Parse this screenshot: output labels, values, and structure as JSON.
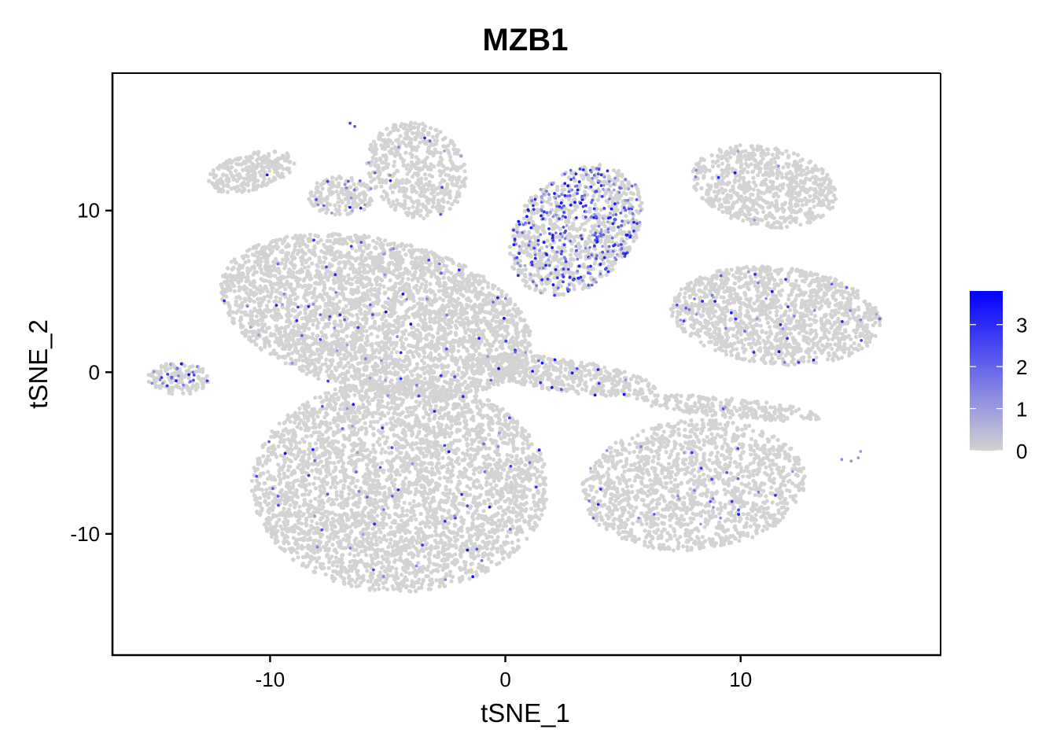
{
  "chart_data": {
    "type": "scatter",
    "title": "MZB1",
    "xlabel": "tSNE_1",
    "ylabel": "tSNE_2",
    "xlim": [
      -16.7,
      18.5
    ],
    "ylim": [
      -17.5,
      18.5
    ],
    "x_ticks": [
      -10,
      0,
      10
    ],
    "x_tick_labels": [
      "-10",
      "0",
      "10"
    ],
    "y_ticks": [
      10,
      0,
      -10
    ],
    "y_tick_labels": [
      "10",
      "0",
      "-10"
    ],
    "grid": false,
    "legend_position": "right",
    "colors": {
      "low": "#d3d3d3",
      "high": "#0000ff"
    },
    "color_scale": {
      "min": 0,
      "max": 3.8,
      "ticks": [
        0,
        1,
        2,
        3
      ],
      "tick_labels": [
        "0",
        "1",
        "2",
        "3"
      ]
    },
    "clusters": [
      {
        "center": [
          -5.5,
          3.5
        ],
        "radius": [
          7.0,
          4.6
        ],
        "angle": -25,
        "n": 3400,
        "expression": 0.02
      },
      {
        "center": [
          -4.5,
          -7.0
        ],
        "radius": [
          6.3,
          6.6
        ],
        "angle": 0,
        "n": 3800,
        "expression": 0.02
      },
      {
        "center": [
          8.0,
          -7.0
        ],
        "radius": [
          4.8,
          4.0
        ],
        "angle": 15,
        "n": 1500,
        "expression": 0.02
      },
      {
        "center": [
          11.5,
          3.5
        ],
        "radius": [
          4.5,
          3.0
        ],
        "angle": -10,
        "n": 1400,
        "expression": 0.03
      },
      {
        "center": [
          3.0,
          8.8
        ],
        "radius": [
          2.6,
          4.2
        ],
        "angle": -20,
        "n": 1100,
        "expression": 0.28
      },
      {
        "center": [
          11.0,
          11.5
        ],
        "radius": [
          3.2,
          2.4
        ],
        "angle": -25,
        "n": 750,
        "expression": 0.01
      },
      {
        "center": [
          -3.8,
          12.5
        ],
        "radius": [
          2.1,
          3.0
        ],
        "angle": 10,
        "n": 550,
        "expression": 0.02
      },
      {
        "center": [
          -10.8,
          12.4
        ],
        "radius": [
          2.0,
          1.1
        ],
        "angle": 25,
        "n": 260,
        "expression": 0.02
      },
      {
        "center": [
          -7.0,
          10.9
        ],
        "radius": [
          1.4,
          1.2
        ],
        "angle": 0,
        "n": 180,
        "expression": 0.12
      },
      {
        "center": [
          -13.9,
          -0.4
        ],
        "radius": [
          1.3,
          1.0
        ],
        "angle": 0,
        "n": 160,
        "expression": 0.15
      },
      {
        "center": [
          2.5,
          -0.2
        ],
        "radius": [
          4.0,
          1.0
        ],
        "angle": -12,
        "n": 500,
        "expression": 0.02
      },
      {
        "center": [
          9.5,
          -2.2
        ],
        "radius": [
          4.0,
          0.6
        ],
        "angle": -8,
        "n": 250,
        "expression": 0.01
      }
    ],
    "highlighted_points": [
      {
        "x": -6.6,
        "y": 15.4,
        "value": 2.6
      },
      {
        "x": -6.4,
        "y": 15.2,
        "value": 2.2
      },
      {
        "x": 14.3,
        "y": -5.4,
        "value": 1.2
      },
      {
        "x": 14.7,
        "y": -5.5,
        "value": 1.1
      },
      {
        "x": 15.0,
        "y": -5.3,
        "value": 1.0
      },
      {
        "x": 15.1,
        "y": -4.9,
        "value": 1.0
      }
    ]
  }
}
